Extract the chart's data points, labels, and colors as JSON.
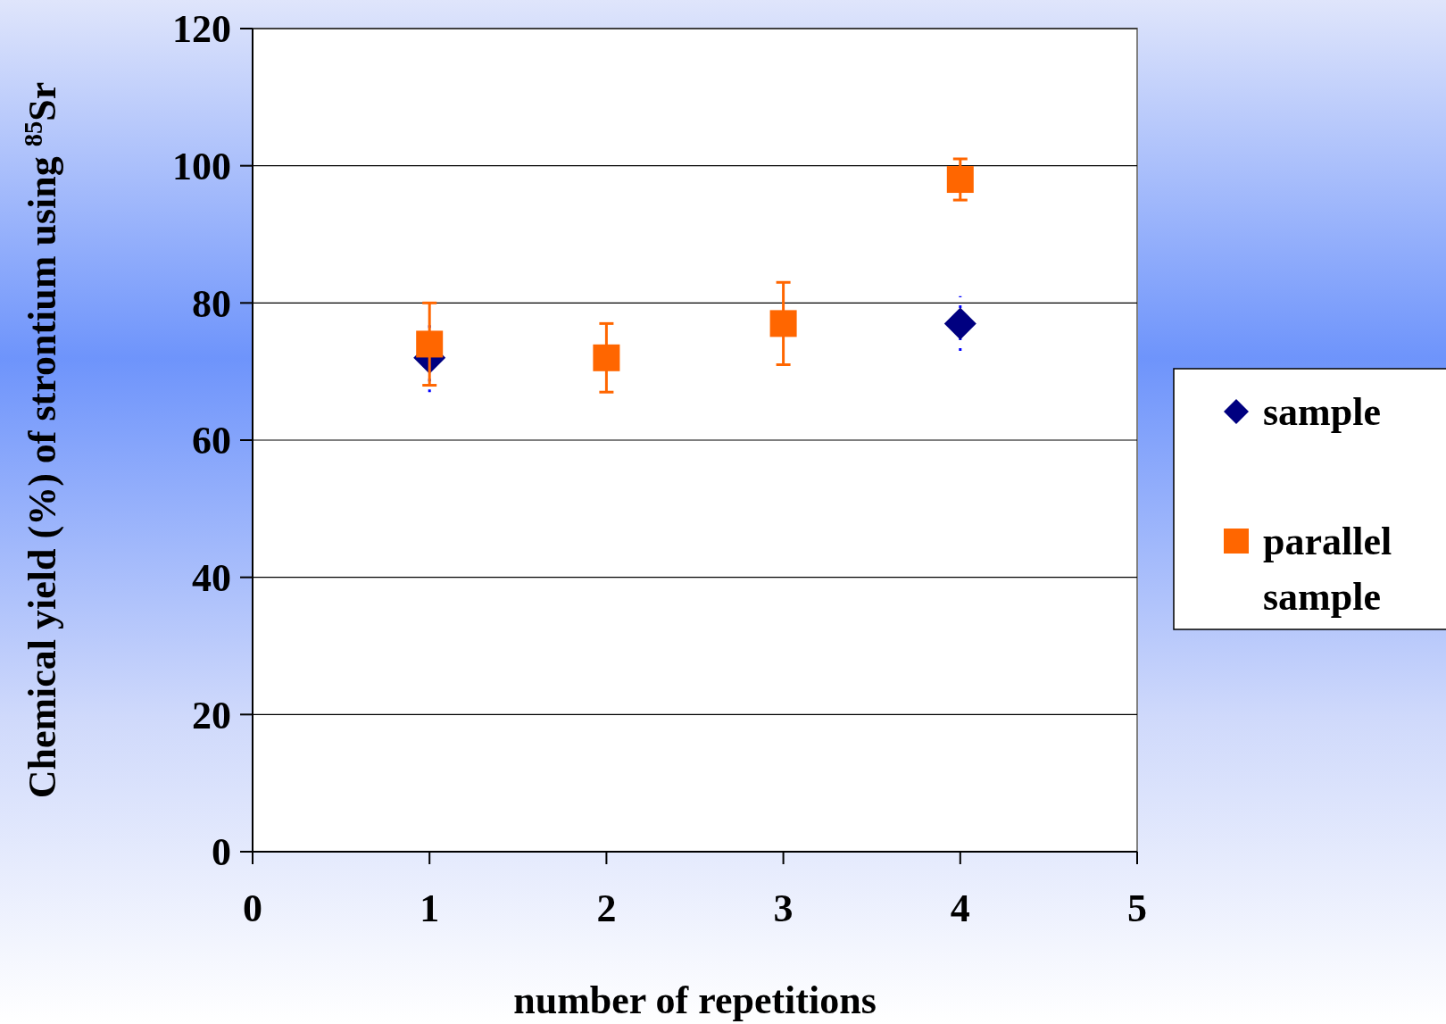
{
  "chart_data": {
    "type": "scatter",
    "xlabel": "number of repetitions",
    "ylabel": "Chemical yield (%) of strontium using $^{85}$Sr",
    "x": [
      1,
      2,
      3,
      4
    ],
    "series": [
      {
        "name": "sample",
        "color": "#000080",
        "marker": "diamond",
        "values": [
          72,
          null,
          null,
          77
        ],
        "errors": [
          5,
          null,
          null,
          4
        ]
      },
      {
        "name": "parallel sample",
        "color": "#ff6600",
        "marker": "square",
        "values": [
          74,
          72,
          77,
          98
        ],
        "errors": [
          6,
          5,
          6,
          3
        ]
      }
    ],
    "xlim": [
      0,
      5
    ],
    "xticks": [
      0,
      1,
      2,
      3,
      4,
      5
    ],
    "ylim": [
      0,
      120
    ],
    "yticks": [
      0,
      20,
      40,
      60,
      80,
      100,
      120
    ],
    "grid": "y",
    "legend": "right"
  }
}
